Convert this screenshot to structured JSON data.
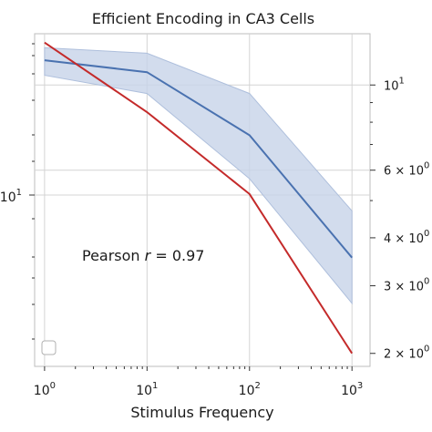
{
  "chart_data": {
    "type": "line",
    "title": "Efficient Encoding in CA3 Cells",
    "xlabel": "Stimulus Frequency",
    "ylabel": "",
    "xscale": "log",
    "xlim": [
      0.8,
      1500
    ],
    "xticks": [
      {
        "value": 1,
        "base": "10",
        "exp": "0"
      },
      {
        "value": 10,
        "base": "10",
        "exp": "1"
      },
      {
        "value": 100,
        "base": "10",
        "exp": "2"
      },
      {
        "value": 1000,
        "base": "10",
        "exp": "3"
      }
    ],
    "x": [
      1,
      10,
      100,
      1000
    ],
    "left_axis": {
      "scale": "log",
      "ticks": [
        {
          "value": 10,
          "base": "10",
          "exp": "1"
        }
      ],
      "minor_ticks": [
        2,
        3,
        4,
        5,
        6,
        7,
        8,
        9,
        20
      ]
    },
    "right_axis": {
      "scale": "log",
      "ylim": [
        1.85,
        13.6
      ],
      "ticks": [
        {
          "value": 10,
          "text": "10",
          "exp": "1"
        },
        {
          "value": 6,
          "text": "6 × 10",
          "exp": "0"
        },
        {
          "value": 4,
          "text": "4 × 10",
          "exp": "0"
        },
        {
          "value": 3,
          "text": "3 × 10",
          "exp": "0"
        },
        {
          "value": 2,
          "text": "2 × 10",
          "exp": "0"
        }
      ]
    },
    "series": [
      {
        "color": "#4a72b0",
        "values": [
          11.6,
          10.8,
          7.4,
          3.55
        ],
        "band_upper": [
          12.5,
          12.1,
          9.5,
          4.7
        ],
        "band_lower": [
          10.6,
          9.5,
          5.7,
          2.7
        ],
        "band_color": "#c7d3e8"
      },
      {
        "color": "#c42a2a",
        "values": [
          12.9,
          8.5,
          5.2,
          2.0
        ]
      }
    ],
    "annotation": {
      "text": "Pearson r = 0.97",
      "prefix": "Pearson ",
      "italic": "r",
      "suffix": " = 0.97"
    },
    "grid": true,
    "legend": "bottom-left"
  }
}
